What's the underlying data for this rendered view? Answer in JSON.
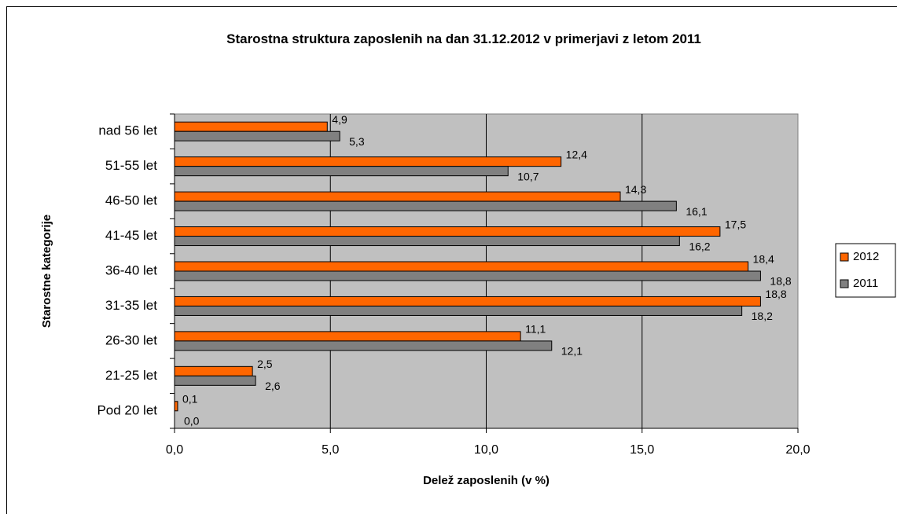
{
  "chart_data": {
    "type": "hbar",
    "title": "Starostna struktura zaposlenih na dan 31.12.2012 v primerjavi z letom 2011",
    "x_label": "Delež zaposlenih (v %)",
    "y_label": "Starostne kategorije",
    "categories": [
      "nad 56 let",
      "51-55 let",
      "46-50 let",
      "41-45 let",
      "36-40 let",
      "31-35 let",
      "26-30 let",
      "21-25 let",
      "Pod 20 let"
    ],
    "series": [
      {
        "name": "2012",
        "color": "#ff6600",
        "values": [
          4.9,
          12.4,
          14.3,
          17.5,
          18.4,
          18.8,
          11.1,
          2.5,
          0.1
        ],
        "value_labels": [
          "4,9",
          "12,4",
          "14,3",
          "17,5",
          "18,4",
          "18,8",
          "11,1",
          "2,5",
          "0,1"
        ]
      },
      {
        "name": "2011",
        "color": "#808080",
        "values": [
          5.3,
          10.7,
          16.1,
          16.2,
          18.8,
          18.2,
          12.1,
          2.6,
          0.0
        ],
        "value_labels": [
          "5,3",
          "10,7",
          "16,1",
          "16,2",
          "18,8",
          "18,2",
          "12,1",
          "2,6",
          "0,0"
        ]
      }
    ],
    "xlim": [
      0,
      20
    ],
    "xticks": [
      {
        "value": 0,
        "label": "0,0"
      },
      {
        "value": 5,
        "label": "5,0"
      },
      {
        "value": 10,
        "label": "10,0"
      },
      {
        "value": 15,
        "label": "15,0"
      },
      {
        "value": 20,
        "label": "20,0"
      }
    ],
    "grid": true,
    "legend": "right",
    "plot_background": "#c0c0c0"
  }
}
